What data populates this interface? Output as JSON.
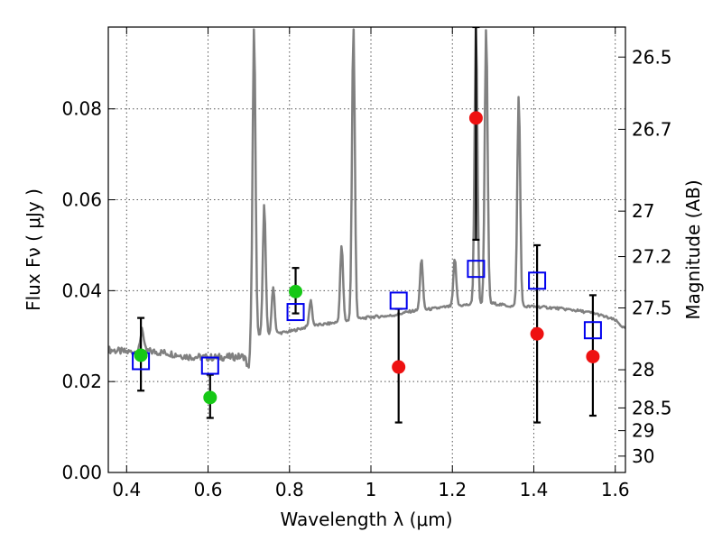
{
  "chart_data": {
    "type": "scatter",
    "xlabel": "Wavelength  λ (μm)",
    "ylabel": "Flux  Fν  ( μJy )",
    "y2label": "Magnitude (AB)",
    "xlim": [
      0.355,
      1.625
    ],
    "ylim": [
      0.0,
      0.098
    ],
    "grid": true,
    "x_ticks": [
      0.4,
      0.6,
      0.8,
      1.0,
      1.2,
      1.4,
      1.6
    ],
    "x_tick_labels": [
      "0.4",
      "0.6",
      "0.8",
      "1",
      "1.2",
      "1.4",
      "1.6"
    ],
    "y_ticks": [
      0.0,
      0.02,
      0.04,
      0.06,
      0.08
    ],
    "y_tick_labels": [
      "0.00",
      "0.02",
      "0.04",
      "0.06",
      "0.08"
    ],
    "y2_ticks": [
      {
        "label": "26.5",
        "flux": 0.0914
      },
      {
        "label": "26.7",
        "flux": 0.0755
      },
      {
        "label": "27",
        "flux": 0.0575
      },
      {
        "label": "27.2",
        "flux": 0.0475
      },
      {
        "label": "27.5",
        "flux": 0.0362
      },
      {
        "label": "28",
        "flux": 0.0226
      },
      {
        "label": "28.5",
        "flux": 0.0142
      },
      {
        "label": "29",
        "flux": 0.0092
      },
      {
        "label": "30",
        "flux": 0.0036
      }
    ],
    "colors": {
      "spectrum": "#808080",
      "model_marker": "#0000ee",
      "green_marker": "#16c816",
      "red_marker": "#ee1111",
      "errorbar": "#000000",
      "grid": "#555555"
    },
    "spectrum": {
      "continuum": [
        [
          0.355,
          0.027
        ],
        [
          0.4,
          0.0265
        ],
        [
          0.45,
          0.0267
        ],
        [
          0.5,
          0.0263
        ],
        [
          0.55,
          0.0255
        ],
        [
          0.6,
          0.0253
        ],
        [
          0.65,
          0.0254
        ],
        [
          0.69,
          0.0255
        ],
        [
          0.7,
          0.0225
        ],
        [
          0.705,
          0.029
        ],
        [
          0.72,
          0.03
        ],
        [
          0.76,
          0.0305
        ],
        [
          0.8,
          0.031
        ],
        [
          0.85,
          0.0322
        ],
        [
          0.9,
          0.0328
        ],
        [
          0.95,
          0.0335
        ],
        [
          1.0,
          0.0342
        ],
        [
          1.05,
          0.0345
        ],
        [
          1.1,
          0.0355
        ],
        [
          1.15,
          0.036
        ],
        [
          1.2,
          0.0366
        ],
        [
          1.25,
          0.037
        ],
        [
          1.3,
          0.0372
        ],
        [
          1.35,
          0.0365
        ],
        [
          1.4,
          0.0365
        ],
        [
          1.45,
          0.0362
        ],
        [
          1.5,
          0.0357
        ],
        [
          1.55,
          0.035
        ],
        [
          1.6,
          0.0335
        ],
        [
          1.625,
          0.0315
        ]
      ],
      "lines": [
        {
          "x": 0.438,
          "peak": 0.032
        },
        {
          "x": 0.713,
          "peak": 0.098
        },
        {
          "x": 0.738,
          "peak": 0.059
        },
        {
          "x": 0.76,
          "peak": 0.041
        },
        {
          "x": 0.852,
          "peak": 0.038
        },
        {
          "x": 0.928,
          "peak": 0.05
        },
        {
          "x": 0.957,
          "peak": 0.098
        },
        {
          "x": 1.124,
          "peak": 0.047
        },
        {
          "x": 1.206,
          "peak": 0.047
        },
        {
          "x": 1.258,
          "peak": 0.098
        },
        {
          "x": 1.283,
          "peak": 0.098
        },
        {
          "x": 1.363,
          "peak": 0.083
        }
      ]
    },
    "series": [
      {
        "marker": "open-square",
        "points": [
          {
            "x": 0.435,
            "y": 0.0245
          },
          {
            "x": 0.605,
            "y": 0.0235
          },
          {
            "x": 0.815,
            "y": 0.0353
          },
          {
            "x": 1.068,
            "y": 0.0378
          },
          {
            "x": 1.258,
            "y": 0.0448
          },
          {
            "x": 1.408,
            "y": 0.0422
          },
          {
            "x": 1.545,
            "y": 0.0313
          }
        ]
      },
      {
        "marker": "filled-circle-green",
        "points": [
          {
            "x": 0.435,
            "y": 0.0258,
            "err_low": 0.018,
            "err_high": 0.034
          },
          {
            "x": 0.605,
            "y": 0.0165,
            "err_low": 0.012,
            "err_high": 0.0215
          },
          {
            "x": 0.815,
            "y": 0.0398,
            "err_low": 0.035,
            "err_high": 0.045
          }
        ]
      },
      {
        "marker": "filled-circle-red",
        "points": [
          {
            "x": 1.068,
            "y": 0.0232,
            "err_low": 0.011,
            "err_high": 0.036
          },
          {
            "x": 1.258,
            "y": 0.078,
            "err_low": 0.0512,
            "err_high": 0.098
          },
          {
            "x": 1.408,
            "y": 0.0305,
            "err_low": 0.011,
            "err_high": 0.05
          },
          {
            "x": 1.545,
            "y": 0.0255,
            "err_low": 0.0125,
            "err_high": 0.039
          }
        ]
      }
    ]
  }
}
